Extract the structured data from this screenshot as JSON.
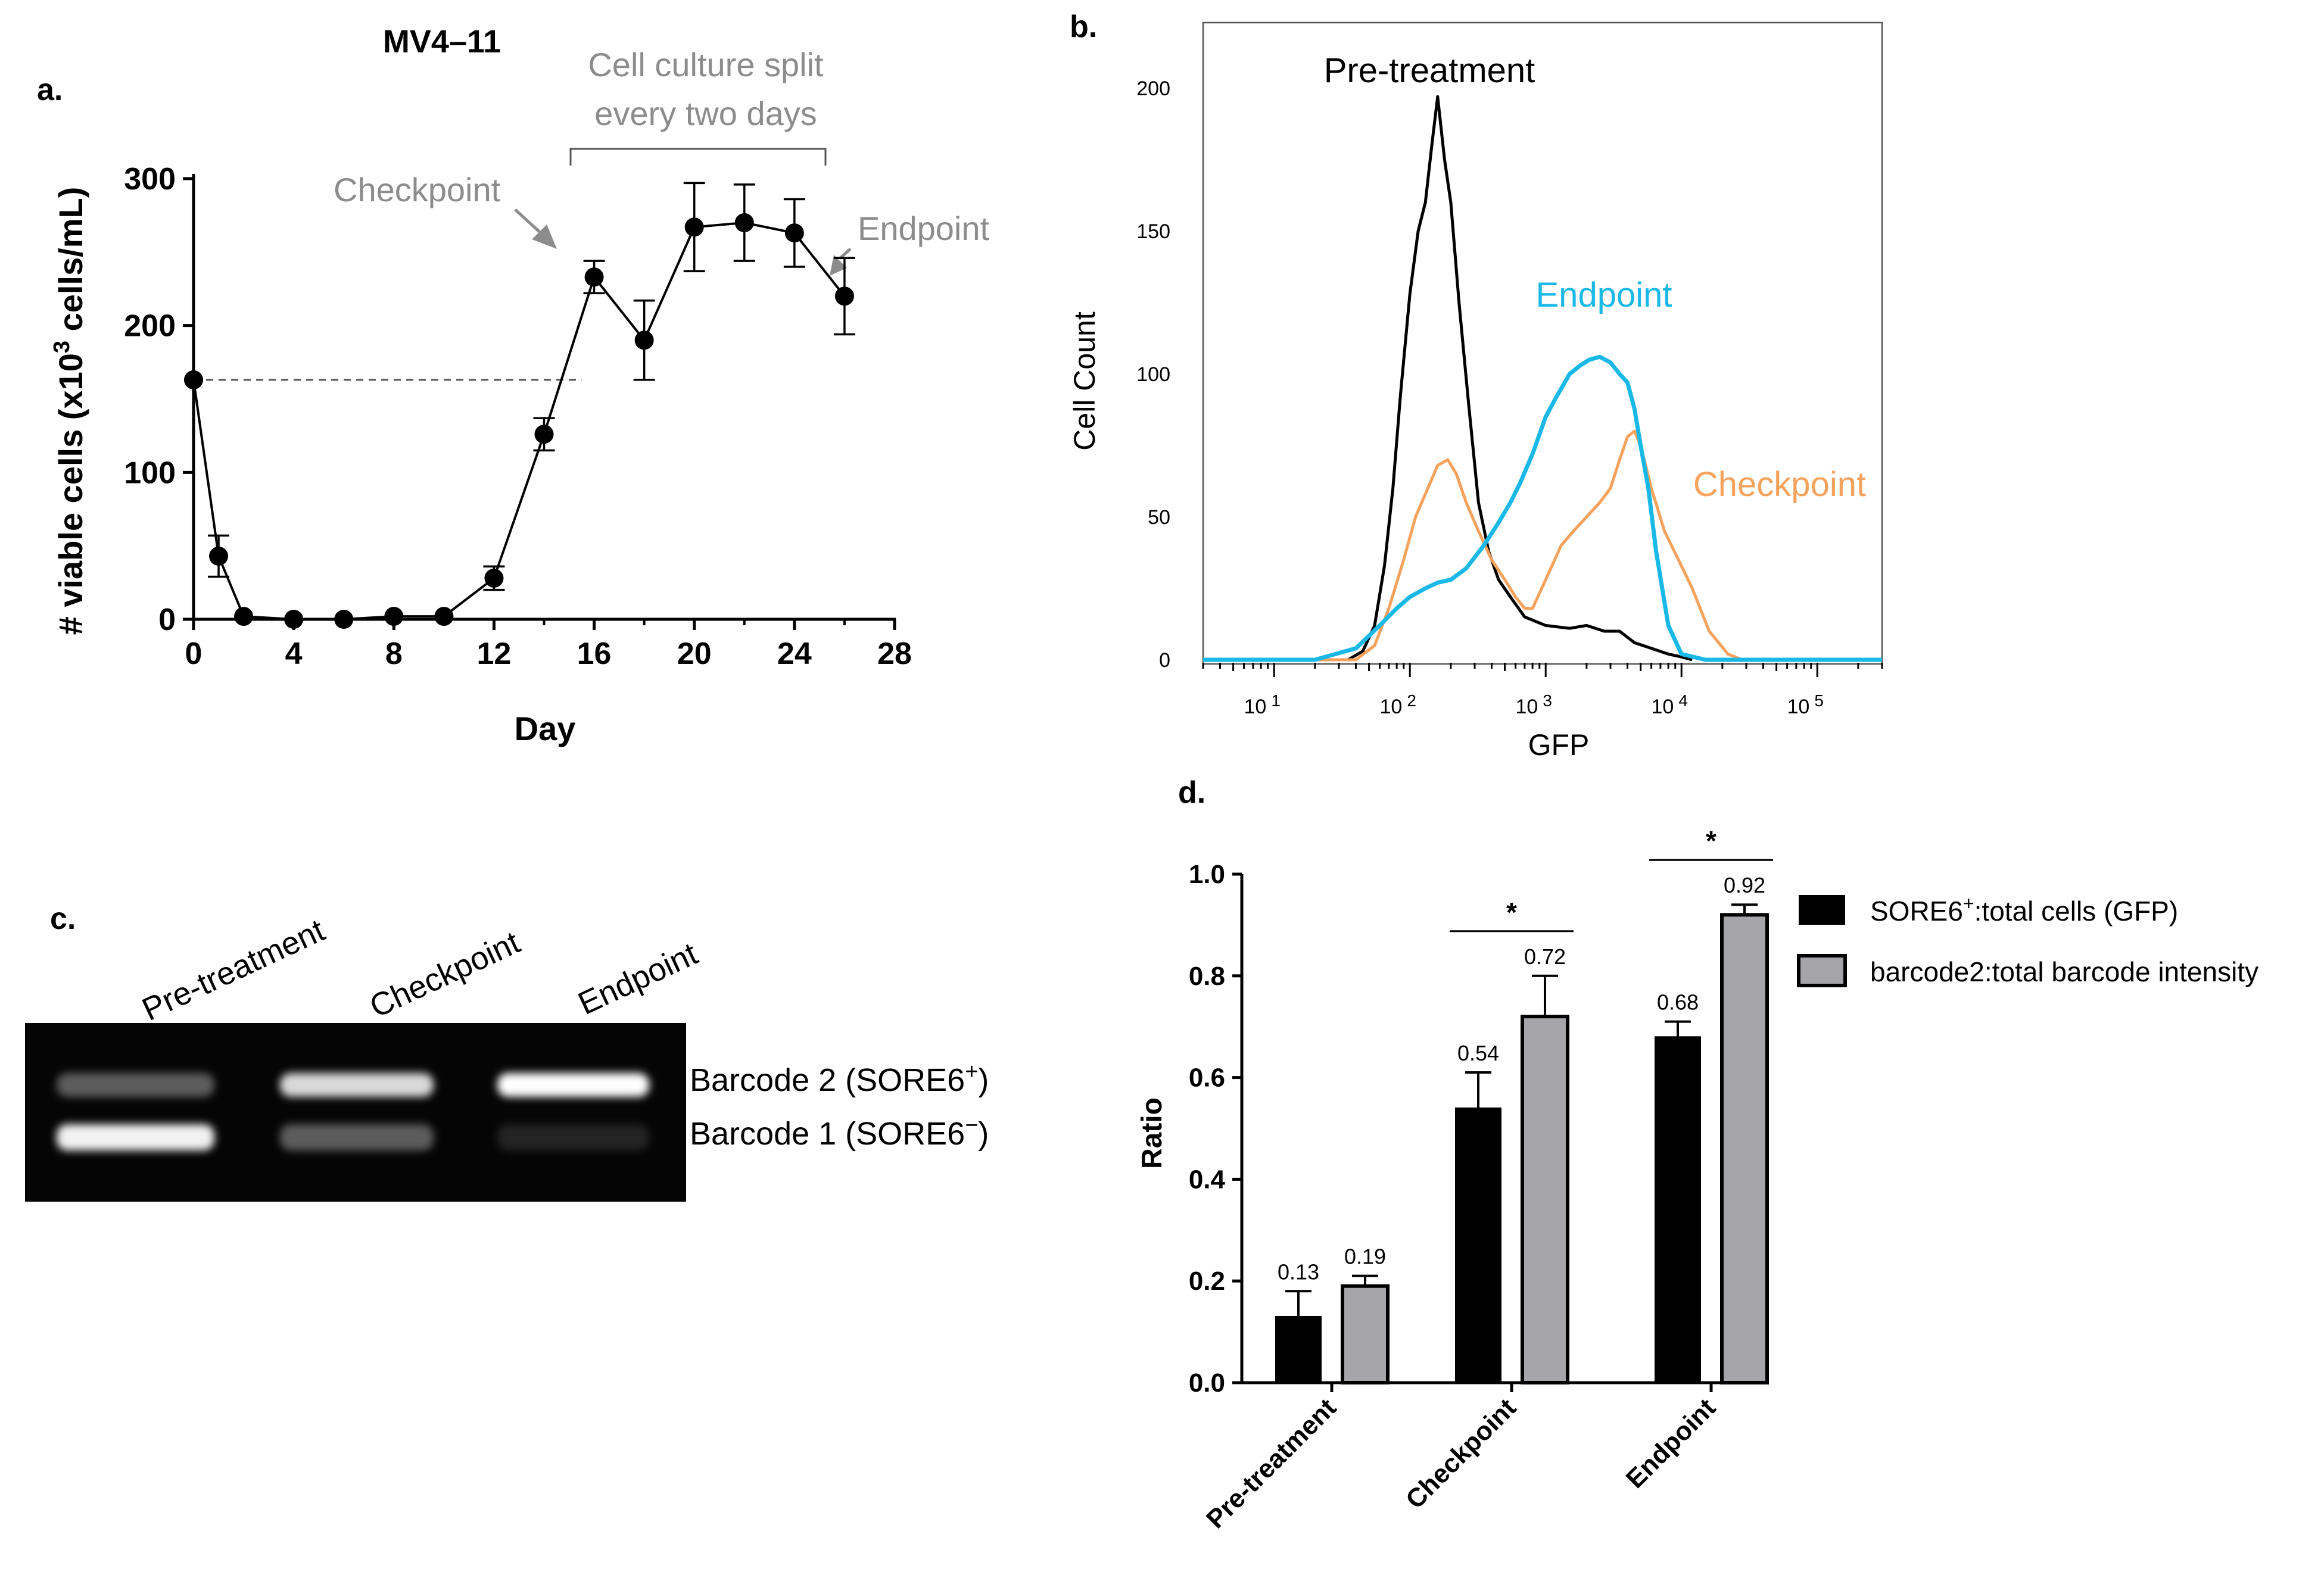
{
  "panel_a": {
    "letter": "a.",
    "title": "MV4–11",
    "annotations": {
      "checkpoint": "Checkpoint",
      "endpoint": "Endpoint",
      "split_line1": "Cell culture split",
      "split_line2": "every two days"
    },
    "ylabel_prefix": "# viable cells (x10",
    "ylabel_sup": "3",
    "ylabel_suffix": " cells/mL)",
    "xlabel": "Day"
  },
  "panel_b": {
    "letter": "b.",
    "ylabel": "Cell Count",
    "xlabel": "GFP",
    "series_labels": {
      "pre": "Pre-treatment",
      "endpoint": "Endpoint",
      "checkpoint": "Checkpoint"
    },
    "colors": {
      "pre": "#000000",
      "endpoint": "#19b8e6",
      "checkpoint": "#f5a25c"
    }
  },
  "panel_c": {
    "letter": "c.",
    "lanes": [
      "Pre-treatment",
      "Checkpoint",
      "Endpoint"
    ],
    "band2_prefix": "Barcode 2 (SORE6",
    "band2_sup": "+",
    "band2_suffix": ")",
    "band1_prefix": "Barcode 1 (SORE6",
    "band1_sup": "−",
    "band1_suffix": ")",
    "band_intensity": {
      "barcode2": [
        0.35,
        0.85,
        1.0
      ],
      "barcode1": [
        0.95,
        0.35,
        0.12
      ]
    }
  },
  "panel_d": {
    "letter": "d.",
    "legend": {
      "s1_prefix": "SORE6",
      "s1_sup": "+",
      "s1_suffix": ":total cells (GFP)",
      "s2": "barcode2:total barcode intensity"
    },
    "colors": {
      "s1": "#000000",
      "s2": "#a6a6aa"
    },
    "significance": "*"
  },
  "chart_data": [
    {
      "type": "line",
      "title": "MV4–11",
      "xlabel": "Day",
      "ylabel": "# viable cells (x10^3 cells/mL)",
      "xlim": [
        0,
        28
      ],
      "ylim": [
        0,
        300
      ],
      "xticks": [
        0,
        4,
        8,
        12,
        16,
        20,
        24,
        28
      ],
      "yticks": [
        0,
        100,
        200,
        300
      ],
      "x": [
        0,
        1,
        2,
        4,
        6,
        8,
        10,
        12,
        14,
        16,
        18,
        20,
        22,
        24,
        26
      ],
      "y": [
        163,
        43,
        2,
        0,
        0,
        2,
        2,
        28,
        126,
        233,
        190,
        267,
        270,
        263,
        220
      ],
      "error": [
        0,
        14,
        0,
        0,
        0,
        0,
        0,
        8,
        11,
        11,
        27,
        30,
        26,
        23,
        26
      ],
      "reference_line_y": 163
    },
    {
      "type": "line",
      "xlabel": "GFP",
      "ylabel": "Cell Count",
      "xscale": "log",
      "xlim": [
        3,
        300000
      ],
      "ylim": [
        0,
        220
      ],
      "yticks": [
        0,
        50,
        100,
        150,
        200
      ],
      "xtick_labels": [
        {
          "base": "10",
          "exp": "1"
        },
        {
          "base": "10",
          "exp": "2"
        },
        {
          "base": "10",
          "exp": "3"
        },
        {
          "base": "10",
          "exp": "4"
        },
        {
          "base": "10",
          "exp": "5"
        }
      ],
      "series": [
        {
          "name": "Pre-treatment",
          "x": [
            35,
            45,
            55,
            65,
            75,
            85,
            100,
            115,
            130,
            145,
            160,
            180,
            200,
            230,
            270,
            320,
            380,
            450,
            550,
            700,
            1000,
            1500,
            2000,
            2700,
            3500,
            4500,
            6000,
            8000,
            10000,
            12000
          ],
          "y": [
            0,
            3,
            12,
            33,
            60,
            92,
            128,
            150,
            160,
            180,
            197,
            175,
            160,
            125,
            90,
            55,
            38,
            28,
            22,
            15,
            12,
            11,
            12,
            10,
            10,
            6,
            4,
            2,
            1,
            0
          ]
        },
        {
          "name": "Endpoint",
          "x": [
            20,
            40,
            60,
            80,
            100,
            130,
            160,
            200,
            260,
            350,
            450,
            550,
            650,
            800,
            1000,
            1200,
            1500,
            1800,
            2100,
            2500,
            3000,
            3500,
            4000,
            4500,
            5000,
            5700,
            6500,
            8000,
            10000,
            15000
          ],
          "y": [
            0,
            4,
            12,
            18,
            22,
            25,
            27,
            28,
            32,
            40,
            48,
            55,
            62,
            72,
            85,
            92,
            100,
            103,
            105,
            106,
            104,
            100,
            97,
            88,
            75,
            60,
            38,
            12,
            2,
            0
          ]
        },
        {
          "name": "Checkpoint",
          "x": [
            40,
            55,
            70,
            90,
            110,
            130,
            160,
            190,
            220,
            260,
            320,
            400,
            500,
            600,
            700,
            800,
            1000,
            1300,
            1600,
            2000,
            2500,
            3000,
            3500,
            4000,
            4500,
            5000,
            6000,
            7500,
            9500,
            12000,
            16000,
            22000,
            28000
          ],
          "y": [
            0,
            5,
            18,
            35,
            50,
            58,
            68,
            70,
            65,
            55,
            45,
            35,
            28,
            22,
            18,
            18,
            28,
            40,
            45,
            50,
            55,
            60,
            70,
            78,
            80,
            75,
            60,
            45,
            35,
            25,
            10,
            2,
            0
          ]
        }
      ]
    },
    {
      "type": "bar",
      "ylabel": "Ratio",
      "ylim": [
        0,
        1.0
      ],
      "yticks": [
        0.0,
        0.2,
        0.4,
        0.6,
        0.8,
        1.0
      ],
      "categories": [
        "Pre-treatment",
        "Checkpoint",
        "Endpoint"
      ],
      "series": [
        {
          "name": "SORE6+:total cells (GFP)",
          "values": [
            0.13,
            0.54,
            0.68
          ],
          "error": [
            0.05,
            0.07,
            0.03
          ],
          "labels": [
            "0.13",
            "0.54",
            "0.68"
          ]
        },
        {
          "name": "barcode2:total barcode intensity",
          "values": [
            0.19,
            0.72,
            0.92
          ],
          "error": [
            0.02,
            0.08,
            0.02
          ],
          "labels": [
            "0.19",
            "0.72",
            "0.92"
          ]
        }
      ],
      "significance": [
        {
          "category": "Checkpoint",
          "label": "*"
        },
        {
          "category": "Endpoint",
          "label": "*"
        }
      ]
    }
  ]
}
